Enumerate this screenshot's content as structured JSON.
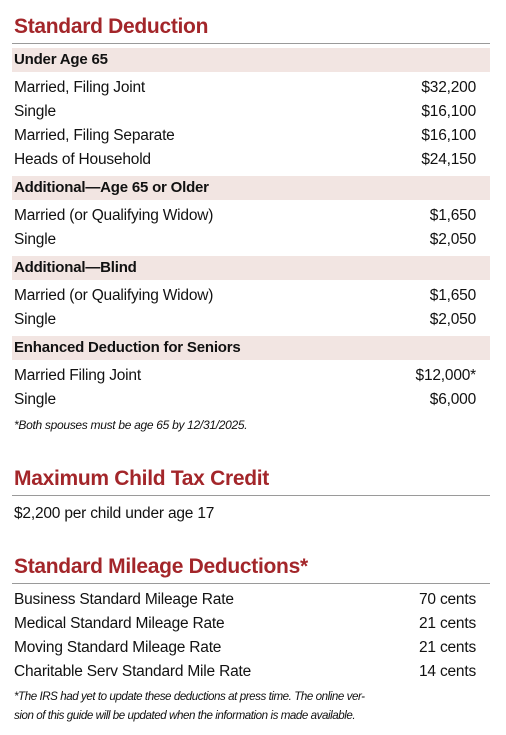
{
  "sections": [
    {
      "title": "Standard Deduction",
      "groups": [
        {
          "heading": "Under Age 65",
          "rows": [
            [
              "Married, Filing Joint",
              "$32,200"
            ],
            [
              "Single",
              "$16,100"
            ],
            [
              "Married, Filing Separate",
              "$16,100"
            ],
            [
              "Heads of Household",
              "$24,150"
            ]
          ]
        },
        {
          "heading": "Additional—Age 65 or Older",
          "rows": [
            [
              "Married (or Qualifying Widow)",
              "$1,650"
            ],
            [
              "Single",
              "$2,050"
            ]
          ]
        },
        {
          "heading": "Additional—Blind",
          "rows": [
            [
              "Married (or Qualifying Widow)",
              "$1,650"
            ],
            [
              "Single",
              "$2,050"
            ]
          ]
        },
        {
          "heading": "Enhanced Deduction for Seniors",
          "rows": [
            [
              "Married Filing Joint",
              "$12,000*"
            ],
            [
              "Single",
              "$6,000"
            ]
          ]
        }
      ],
      "note": "*Both spouses must be age 65 by 12/31/2025."
    },
    {
      "title": "Maximum Child Tax Credit",
      "text": "$2,200 per child under age 17"
    },
    {
      "title": "Standard Mileage Deductions*",
      "rows": [
        [
          "Business Standard Mileage Rate",
          "70 cents"
        ],
        [
          "Medical Standard Mileage Rate",
          "21 cents"
        ],
        [
          "Moving Standard Mileage Rate",
          "21 cents"
        ],
        [
          "Charitable Serv Standard Mile Rate",
          "14 cents"
        ]
      ],
      "note": [
        "*The IRS had yet to update these deductions at press time. The online ver-",
        "sion of this guide will be updated when the information is made available."
      ]
    }
  ]
}
